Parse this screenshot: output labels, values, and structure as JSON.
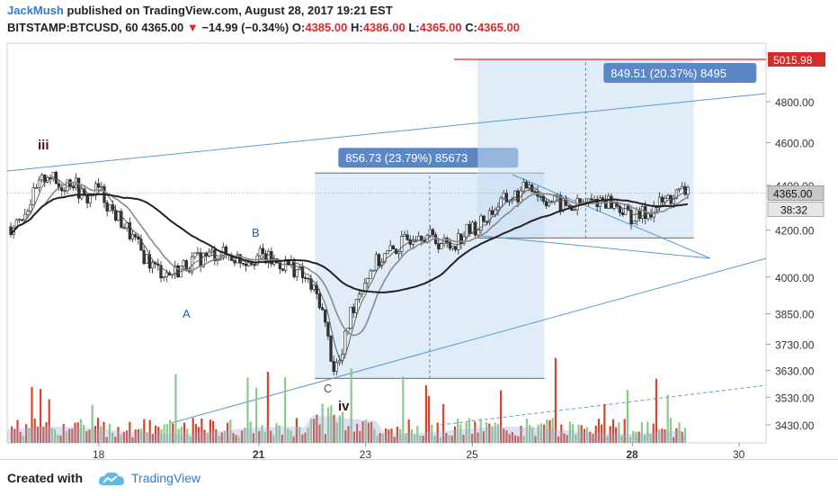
{
  "header": {
    "author": "JackMush",
    "published": "published on TradingView.com, August 28, 2017 19:21 EST",
    "symbol": "BITSTAMP:BTCUSD, 60",
    "last": "4365.00",
    "change": "−14.99 (−0.34%)",
    "open_label": "O:",
    "open": "4385.00",
    "high_label": "H:",
    "high": "4386.00",
    "low_label": "L:",
    "low": "4365.00",
    "close_label": "C:",
    "close": "4365.00"
  },
  "footer": {
    "created_with": "Created with",
    "brand": "TradingView"
  },
  "colors": {
    "up": "#555555",
    "down": "#333333",
    "vol_up": "#8cc98a",
    "vol_down": "#d2462e",
    "accent": "#d42b2b",
    "trend": "#5a9ad5",
    "box": "#c6dcf2"
  },
  "chart_data": {
    "type": "candlestick",
    "y_scale": "log",
    "y_ticks": [
      3430,
      3530,
      3630,
      3730,
      3850,
      4000,
      4200,
      4400,
      4600,
      4800,
      5015.98
    ],
    "y_tick_labels": [
      "3430.00",
      "3530.00",
      "3630.00",
      "3730.00",
      "3850.00",
      "4000.00",
      "4200.00",
      "4400.00",
      "4600.00",
      "4800.00",
      "5015.98"
    ],
    "x_ticks": [
      "18",
      "21",
      "23",
      "25",
      "28",
      "30"
    ],
    "last_price": 4365.0,
    "last_price_label": "4365.00",
    "countdown_label": "38:32",
    "target_price": 5015.98,
    "target_label": "5015.98",
    "measure_boxes": [
      {
        "label": "856.73 (23.79%) 85673",
        "from_price": 3600,
        "to_price": 4457
      },
      {
        "label": "849.51 (20.37%) 8495",
        "from_price": 4166,
        "to_price": 5015.98
      }
    ],
    "wave_labels": [
      "iii",
      "A",
      "B",
      "C",
      "iv"
    ],
    "price_path": [
      [
        0,
        4215
      ],
      [
        0.5,
        4280
      ],
      [
        1,
        4380
      ],
      [
        1.4,
        4460
      ],
      [
        1.8,
        4390
      ],
      [
        2.3,
        4430
      ],
      [
        2.8,
        4330
      ],
      [
        3.3,
        4390
      ],
      [
        3.8,
        4290
      ],
      [
        4.3,
        4220
      ],
      [
        4.9,
        4110
      ],
      [
        5.4,
        4040
      ],
      [
        6,
        4010
      ],
      [
        6.6,
        4050
      ],
      [
        7.2,
        4080
      ],
      [
        7.8,
        4100
      ],
      [
        8.3,
        4090
      ],
      [
        8.8,
        4070
      ],
      [
        9.4,
        4090
      ],
      [
        10,
        4060
      ],
      [
        10.6,
        4050
      ],
      [
        11.2,
        3980
      ],
      [
        11.7,
        3900
      ],
      [
        12.2,
        3640
      ],
      [
        12.5,
        3670
      ],
      [
        12.8,
        3840
      ],
      [
        13.2,
        3950
      ],
      [
        13.7,
        4050
      ],
      [
        14.3,
        4100
      ],
      [
        14.8,
        4140
      ],
      [
        15.4,
        4200
      ],
      [
        16,
        4160
      ],
      [
        16.6,
        4130
      ],
      [
        17.2,
        4190
      ],
      [
        17.7,
        4220
      ],
      [
        18.3,
        4300
      ],
      [
        18.8,
        4340
      ],
      [
        19.3,
        4360
      ],
      [
        19.6,
        4420
      ],
      [
        20,
        4350
      ],
      [
        20.6,
        4320
      ],
      [
        21.2,
        4300
      ],
      [
        21.8,
        4320
      ],
      [
        22.4,
        4340
      ],
      [
        23,
        4300
      ],
      [
        23.6,
        4250
      ],
      [
        24.2,
        4290
      ],
      [
        24.6,
        4320
      ],
      [
        25.2,
        4360
      ],
      [
        25.6,
        4380
      ]
    ],
    "volume_range": [
      0,
      100
    ]
  }
}
